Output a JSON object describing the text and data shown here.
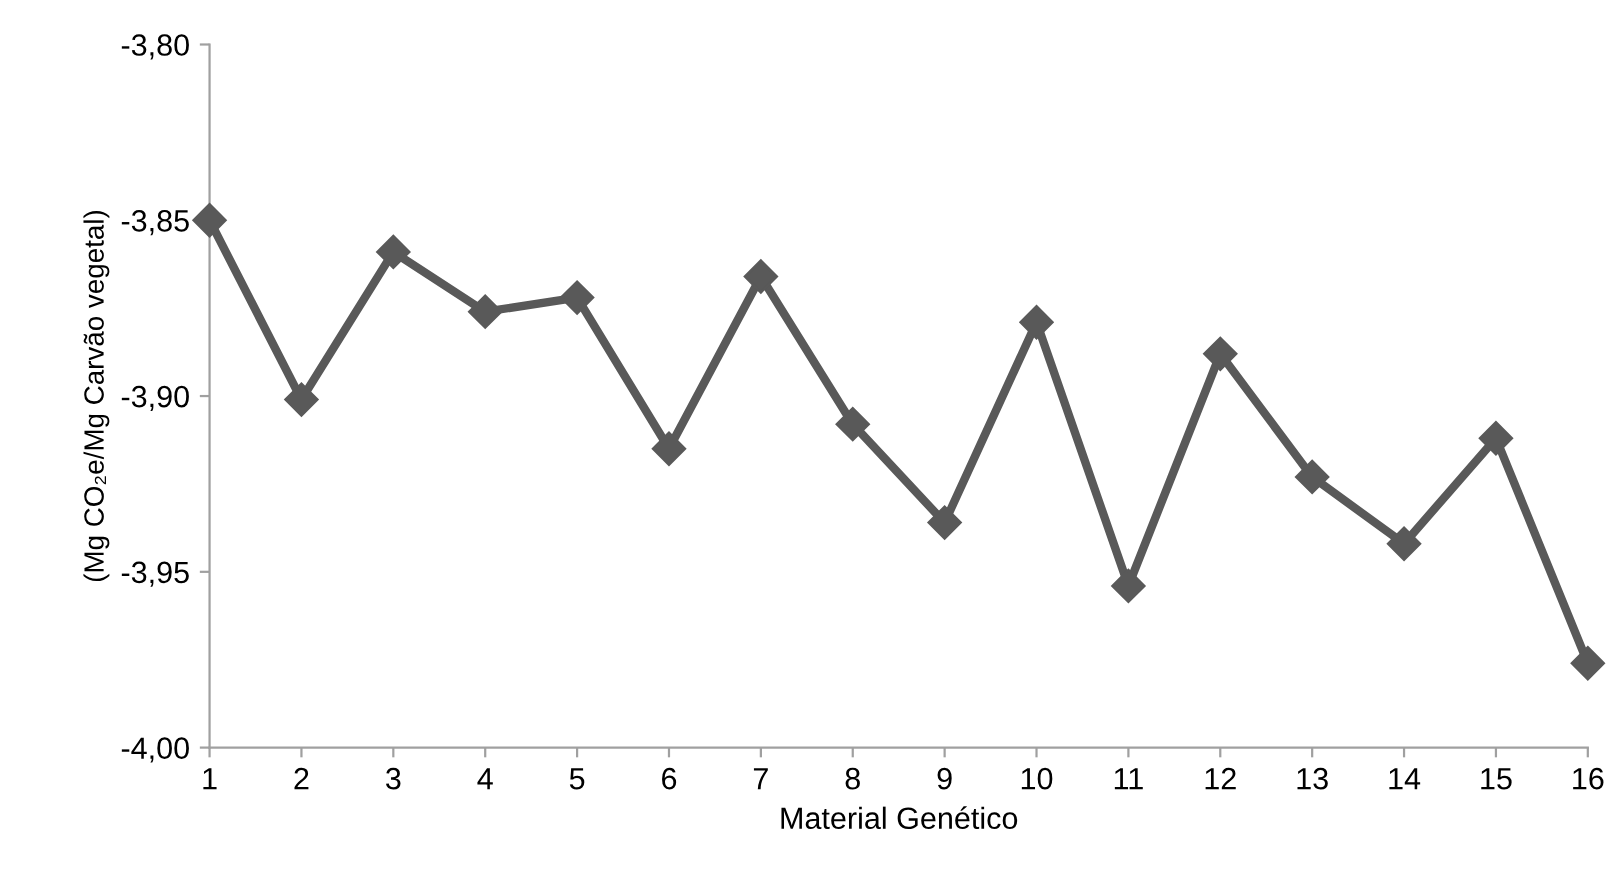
{
  "chart_data": {
    "type": "line",
    "xlabel": "Material Genético",
    "ylabel": "(Mg CO₂e/Mg Carvão vegetal)",
    "categories": [
      "1",
      "2",
      "3",
      "4",
      "5",
      "6",
      "7",
      "8",
      "9",
      "10",
      "11",
      "12",
      "13",
      "14",
      "15",
      "16"
    ],
    "series": [
      {
        "color": "#595959",
        "values": [
          -3.85,
          -3.901,
          -3.859,
          -3.876,
          -3.872,
          -3.915,
          -3.866,
          -3.908,
          -3.936,
          -3.879,
          -3.954,
          -3.888,
          -3.923,
          -3.942,
          -3.912,
          -3.976
        ]
      }
    ],
    "ylim": [
      -4.0,
      -3.8
    ],
    "yticks": [
      {
        "value": -4.0,
        "label": "-4,00"
      },
      {
        "value": -3.95,
        "label": "-3,95"
      },
      {
        "value": -3.9,
        "label": "-3,90"
      },
      {
        "value": -3.85,
        "label": "-3,85"
      },
      {
        "value": -3.8,
        "label": "-3,80"
      }
    ],
    "marker": "diamond",
    "line_style": "solid",
    "grid": false,
    "legend": false
  }
}
